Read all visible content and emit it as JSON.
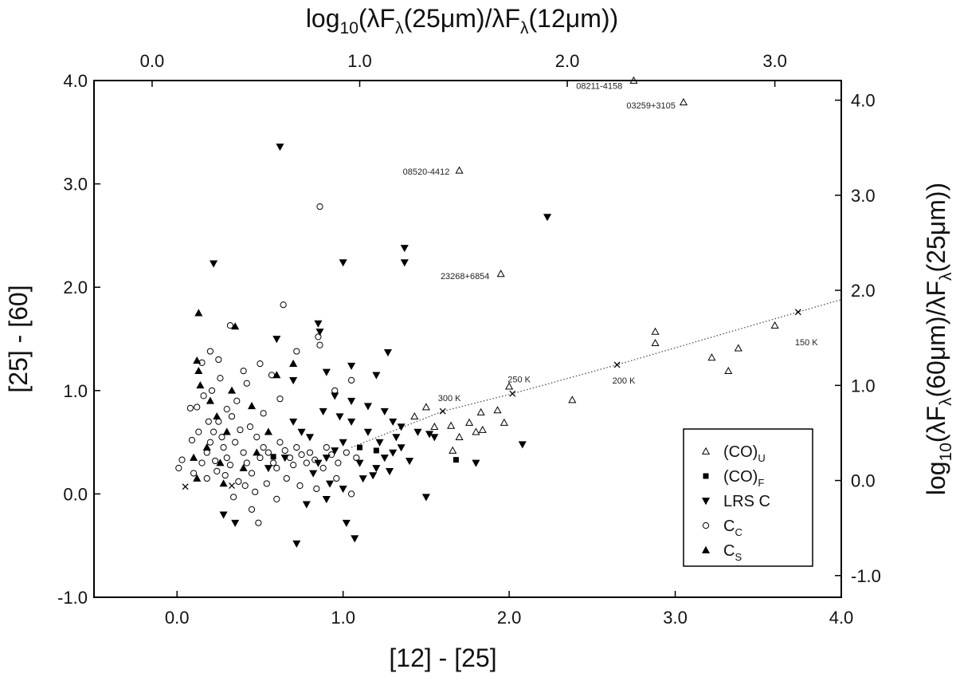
{
  "chart_data": {
    "type": "scatter",
    "xlabel": "[12] - [25]",
    "ylabel": "[25] - [60]",
    "xlim": [
      -0.5,
      4.0
    ],
    "ylim": [
      -1.0,
      4.0
    ],
    "xticks": [
      "0.0",
      "1.0",
      "2.0",
      "3.0",
      "4.0"
    ],
    "yticks": [
      "-1.0",
      "0.0",
      "1.0",
      "2.0",
      "3.0",
      "4.0"
    ],
    "top_axis": {
      "label_main": "log",
      "label_sub": "10",
      "label_rest": "(λF",
      "label_lambda": "λ",
      "label_mid": "(25μm)/λF",
      "label_end": "(12μm))",
      "ticks": [
        "0.0",
        "1.0",
        "2.0",
        "3.0"
      ]
    },
    "right_axis": {
      "label_main": "log",
      "label_sub": "10",
      "label_rest": "(λF",
      "label_lambda": "λ",
      "label_mid": "(60μm)/λF",
      "label_end": "(25μm))",
      "ticks": [
        "-1.0",
        "0.0",
        "1.0",
        "2.0",
        "3.0",
        "4.0"
      ]
    },
    "legend": {
      "placement": "bottom-right",
      "entries": [
        {
          "marker": "triangle-open",
          "main": "(CO)",
          "sub": "U"
        },
        {
          "marker": "square-filled",
          "main": "(CO)",
          "sub": "F"
        },
        {
          "marker": "triangle-down-filled",
          "main": "LRS C",
          "sub": ""
        },
        {
          "marker": "circle-open",
          "main": "C",
          "sub": "C"
        },
        {
          "marker": "triangle-filled",
          "main": "C",
          "sub": "S"
        }
      ]
    },
    "blackbody_line": {
      "x": [
        1.05,
        1.6,
        2.02,
        2.65,
        3.74,
        4.0
      ],
      "y": [
        0.45,
        0.8,
        0.97,
        1.25,
        1.76,
        1.88
      ],
      "markers": [
        [
          1.6,
          0.8
        ],
        [
          2.02,
          0.97
        ],
        [
          2.65,
          1.25
        ],
        [
          3.74,
          1.76
        ]
      ],
      "temperature_labels": [
        {
          "text": "300 K",
          "x": 1.6,
          "y": 0.93
        },
        {
          "text": "250 K",
          "x": 2.02,
          "y": 1.11
        },
        {
          "text": "200 K",
          "x": 2.65,
          "y": 1.1
        },
        {
          "text": "150 K",
          "x": 3.75,
          "y": 1.47
        }
      ]
    },
    "annotations": [
      {
        "text": "08211-4158",
        "x": 2.72,
        "y": 3.95
      },
      {
        "text": "03259+3105",
        "x": 3.04,
        "y": 3.76
      },
      {
        "text": "08520-4412",
        "x": 1.68,
        "y": 3.12
      },
      {
        "text": "23268+6854",
        "x": 1.92,
        "y": 2.11
      }
    ],
    "series": [
      {
        "name": "(CO)U",
        "marker": "triangle-open",
        "points": [
          [
            2.75,
            4.0
          ],
          [
            3.05,
            3.79
          ],
          [
            1.7,
            3.13
          ],
          [
            1.95,
            2.13
          ],
          [
            2.88,
            1.57
          ],
          [
            2.88,
            1.46
          ],
          [
            3.6,
            1.63
          ],
          [
            3.38,
            1.41
          ],
          [
            3.22,
            1.32
          ],
          [
            3.32,
            1.19
          ],
          [
            2.38,
            0.91
          ],
          [
            2.0,
            1.04
          ],
          [
            1.93,
            0.81
          ],
          [
            1.97,
            0.69
          ],
          [
            1.83,
            0.79
          ],
          [
            1.84,
            0.62
          ],
          [
            1.8,
            0.6
          ],
          [
            1.76,
            0.69
          ],
          [
            1.65,
            0.66
          ],
          [
            1.66,
            0.42
          ],
          [
            1.5,
            0.84
          ],
          [
            1.43,
            0.75
          ],
          [
            1.55,
            0.65
          ],
          [
            1.7,
            0.55
          ]
        ]
      },
      {
        "name": "(CO)F",
        "marker": "square-filled",
        "points": [
          [
            1.68,
            0.33
          ],
          [
            1.1,
            0.45
          ],
          [
            1.2,
            0.42
          ],
          [
            0.58,
            0.36
          ]
        ]
      },
      {
        "name": "LRS C",
        "marker": "triangle-down-filled",
        "points": [
          [
            0.62,
            3.36
          ],
          [
            2.23,
            2.68
          ],
          [
            1.37,
            2.38
          ],
          [
            1.37,
            2.24
          ],
          [
            1.0,
            2.24
          ],
          [
            0.22,
            2.23
          ],
          [
            0.85,
            1.65
          ],
          [
            0.86,
            1.57
          ],
          [
            1.27,
            1.37
          ],
          [
            1.05,
            1.24
          ],
          [
            0.9,
            1.18
          ],
          [
            1.2,
            1.15
          ],
          [
            0.6,
            1.5
          ],
          [
            0.7,
            1.1
          ],
          [
            0.95,
            0.95
          ],
          [
            1.05,
            0.9
          ],
          [
            1.15,
            0.85
          ],
          [
            1.25,
            0.8
          ],
          [
            1.3,
            0.7
          ],
          [
            1.35,
            0.65
          ],
          [
            1.45,
            0.6
          ],
          [
            1.52,
            0.58
          ],
          [
            1.55,
            0.55
          ],
          [
            1.5,
            -0.03
          ],
          [
            1.02,
            -0.28
          ],
          [
            0.72,
            -0.48
          ],
          [
            1.07,
            -0.43
          ],
          [
            0.9,
            -0.05
          ],
          [
            0.35,
            -0.28
          ],
          [
            0.28,
            -0.2
          ],
          [
            2.08,
            0.48
          ],
          [
            1.8,
            0.3
          ],
          [
            1.1,
            0.3
          ],
          [
            1.2,
            0.25
          ],
          [
            1.25,
            0.35
          ],
          [
            1.3,
            0.4
          ],
          [
            1.35,
            0.45
          ],
          [
            1.4,
            0.32
          ],
          [
            1.0,
            0.5
          ],
          [
            0.95,
            0.42
          ],
          [
            0.9,
            0.35
          ],
          [
            0.85,
            0.3
          ],
          [
            0.8,
            0.55
          ],
          [
            0.75,
            0.6
          ],
          [
            1.15,
            0.6
          ],
          [
            1.22,
            0.5
          ],
          [
            0.65,
            0.35
          ],
          [
            0.55,
            0.25
          ],
          [
            1.05,
            0.7
          ],
          [
            0.98,
            0.75
          ],
          [
            1.12,
            0.15
          ],
          [
            0.92,
            0.1
          ],
          [
            0.82,
            0.2
          ],
          [
            1.28,
            0.22
          ],
          [
            1.18,
            0.18
          ],
          [
            0.7,
            0.7
          ],
          [
            0.88,
            0.8
          ],
          [
            1.32,
            0.55
          ],
          [
            1.0,
            0.05
          ],
          [
            0.78,
            -0.1
          ]
        ]
      },
      {
        "name": "CC",
        "marker": "circle-open",
        "points": [
          [
            0.86,
            2.78
          ],
          [
            0.64,
            1.83
          ],
          [
            0.32,
            1.63
          ],
          [
            0.2,
            1.38
          ],
          [
            0.85,
            1.52
          ],
          [
            0.86,
            1.44
          ],
          [
            0.72,
            1.38
          ],
          [
            0.5,
            1.26
          ],
          [
            0.25,
            1.3
          ],
          [
            0.15,
            1.27
          ],
          [
            0.4,
            1.19
          ],
          [
            0.57,
            1.15
          ],
          [
            0.42,
            1.07
          ],
          [
            0.12,
            0.84
          ],
          [
            0.08,
            0.83
          ],
          [
            0.03,
            0.33
          ],
          [
            0.01,
            0.25
          ],
          [
            0.1,
            0.2
          ],
          [
            0.15,
            0.3
          ],
          [
            0.18,
            0.4
          ],
          [
            0.2,
            0.5
          ],
          [
            0.22,
            0.6
          ],
          [
            0.25,
            0.7
          ],
          [
            0.28,
            0.45
          ],
          [
            0.3,
            0.35
          ],
          [
            0.32,
            0.28
          ],
          [
            0.35,
            0.5
          ],
          [
            0.38,
            0.62
          ],
          [
            0.4,
            0.4
          ],
          [
            0.42,
            0.3
          ],
          [
            0.45,
            0.2
          ],
          [
            0.48,
            0.55
          ],
          [
            0.5,
            0.35
          ],
          [
            0.52,
            0.45
          ],
          [
            0.55,
            0.4
          ],
          [
            0.58,
            0.3
          ],
          [
            0.6,
            0.25
          ],
          [
            0.62,
            0.5
          ],
          [
            0.65,
            0.42
          ],
          [
            0.68,
            0.35
          ],
          [
            0.7,
            0.28
          ],
          [
            0.72,
            0.45
          ],
          [
            0.75,
            0.38
          ],
          [
            0.78,
            0.3
          ],
          [
            0.8,
            0.4
          ],
          [
            0.83,
            0.33
          ],
          [
            0.88,
            0.25
          ],
          [
            0.9,
            0.45
          ],
          [
            0.93,
            0.38
          ],
          [
            0.97,
            0.3
          ],
          [
            1.02,
            0.4
          ],
          [
            1.08,
            0.35
          ],
          [
            1.05,
            1.1
          ],
          [
            0.95,
            1.0
          ],
          [
            0.49,
            -0.28
          ],
          [
            0.34,
            -0.03
          ],
          [
            0.45,
            -0.15
          ],
          [
            0.6,
            -0.05
          ],
          [
            1.05,
            0.0
          ],
          [
            0.18,
            0.15
          ],
          [
            0.24,
            0.22
          ],
          [
            0.27,
            0.55
          ],
          [
            0.3,
            0.82
          ],
          [
            0.36,
            0.9
          ],
          [
            0.33,
            0.75
          ],
          [
            0.44,
            0.65
          ],
          [
            0.52,
            0.78
          ],
          [
            0.62,
            0.92
          ],
          [
            0.21,
            1.0
          ],
          [
            0.16,
            0.95
          ],
          [
            0.26,
            1.12
          ],
          [
            0.09,
            0.52
          ],
          [
            0.13,
            0.6
          ],
          [
            0.19,
            0.7
          ],
          [
            0.23,
            0.32
          ],
          [
            0.29,
            0.18
          ],
          [
            0.37,
            0.12
          ],
          [
            0.41,
            0.08
          ],
          [
            0.47,
            0.02
          ],
          [
            0.54,
            0.1
          ],
          [
            0.66,
            0.15
          ],
          [
            0.74,
            0.08
          ],
          [
            0.84,
            0.05
          ],
          [
            0.96,
            0.15
          ]
        ]
      },
      {
        "name": "CS",
        "marker": "triangle-filled",
        "points": [
          [
            0.13,
            1.75
          ],
          [
            0.35,
            1.62
          ],
          [
            0.12,
            1.29
          ],
          [
            0.13,
            1.19
          ],
          [
            0.14,
            1.05
          ],
          [
            0.7,
            1.26
          ],
          [
            0.6,
            1.15
          ],
          [
            0.2,
            0.9
          ],
          [
            0.24,
            0.75
          ],
          [
            0.3,
            0.6
          ],
          [
            0.18,
            0.45
          ],
          [
            0.1,
            0.35
          ],
          [
            0.12,
            0.15
          ],
          [
            0.28,
            0.1
          ],
          [
            0.4,
            0.25
          ],
          [
            0.55,
            0.6
          ],
          [
            0.45,
            0.85
          ],
          [
            0.33,
            1.0
          ],
          [
            0.48,
            0.4
          ],
          [
            0.26,
            0.3
          ]
        ]
      },
      {
        "name": "cross",
        "marker": "cross",
        "points": [
          [
            0.05,
            0.07
          ],
          [
            0.33,
            0.08
          ]
        ]
      }
    ]
  }
}
